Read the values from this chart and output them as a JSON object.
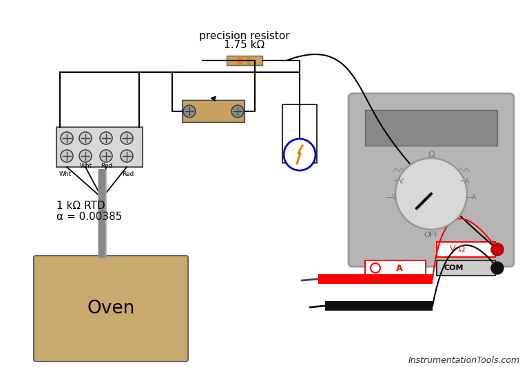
{
  "bg_color": "#ffffff",
  "oven_color": "#c8a96e",
  "oven_label": "Oven",
  "rtd_label_line1": "1 kΩ RTD",
  "rtd_label_line2": "α = 0.00385",
  "resistor_label_line1": "1.75 kΩ",
  "resistor_label_line2": "precision resistor",
  "footer_text": "InstrumentationTools.com",
  "multimeter_body_color": "#c0c0c0",
  "multimeter_screen_color": "#909090",
  "dial_color": "#e0e0e0",
  "dial_edge_color": "#aaaaaa"
}
